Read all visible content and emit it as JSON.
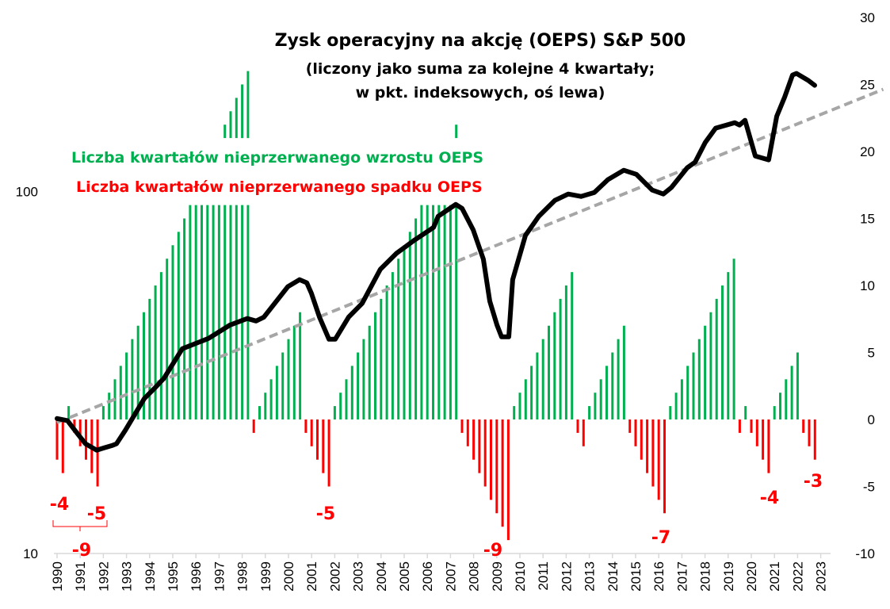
{
  "chart_data": {
    "type": "bar+line",
    "title": "Zysk operacyjny na akcję (OEPS) S&P 500",
    "subtitle_lines": [
      "(liczony jako suma za kolejne 4 kwartały;",
      "w pkt. indeksowych, oś lewa)"
    ],
    "legend": [
      {
        "text": "Liczba kwartałów nieprzerwanego wzrostu OEPS",
        "color": "#00B050"
      },
      {
        "text": "Liczba kwartałów nieprzerwanego spadku OEPS",
        "color": "#FF0000"
      }
    ],
    "left_axis": {
      "scale": "log",
      "range": [
        10,
        303
      ],
      "tick_labels": [
        "10",
        "100"
      ],
      "ticks": [
        10,
        100
      ]
    },
    "right_axis": {
      "scale": "linear",
      "range": [
        -10,
        30
      ],
      "ticks": [
        -10,
        -5,
        0,
        5,
        10,
        15,
        20,
        25,
        30
      ],
      "tick_labels": [
        "-10",
        "-5",
        "0",
        "5",
        "10",
        "15",
        "20",
        "25",
        "30"
      ]
    },
    "right_axis_break": {
      "clip_at": 16,
      "resume_from": 21
    },
    "x_range": [
      1990,
      2025.75
    ],
    "x_tick_labels": [
      "1990",
      "1991",
      "1992",
      "1993",
      "1994",
      "1995",
      "1996",
      "1997",
      "1998",
      "1999",
      "2000",
      "2001",
      "2002",
      "2003",
      "2004",
      "2005",
      "2006",
      "2007",
      "2008",
      "2009",
      "2010",
      "2011",
      "2012",
      "2013",
      "2014",
      "2015",
      "2016",
      "2017",
      "2018",
      "2019",
      "2020",
      "2021",
      "2022",
      "2023"
    ],
    "bars_start": "1990Q1",
    "bar_values": [
      -3,
      -4,
      1,
      -1,
      -2,
      -3,
      -4,
      -5,
      1,
      2,
      3,
      4,
      5,
      6,
      7,
      8,
      9,
      10,
      11,
      12,
      13,
      14,
      15,
      16,
      17,
      18,
      19,
      20,
      21,
      22,
      23,
      24,
      25,
      26,
      -1,
      1,
      2,
      3,
      4,
      5,
      6,
      7,
      8,
      -1,
      -2,
      -3,
      -4,
      -5,
      1,
      2,
      3,
      4,
      5,
      6,
      7,
      8,
      9,
      10,
      11,
      12,
      13,
      14,
      15,
      16,
      17,
      18,
      19,
      20,
      21,
      22,
      -1,
      -2,
      -3,
      -4,
      -5,
      -6,
      -7,
      -8,
      -9,
      1,
      2,
      3,
      4,
      5,
      6,
      7,
      8,
      9,
      10,
      11,
      -1,
      -2,
      1,
      2,
      3,
      4,
      5,
      6,
      7,
      -1,
      -2,
      -3,
      -4,
      -5,
      -6,
      -7,
      1,
      2,
      3,
      4,
      5,
      6,
      7,
      8,
      9,
      10,
      11,
      12,
      -1,
      1,
      -1,
      -2,
      -3,
      -4,
      1,
      2,
      3,
      4,
      5,
      -1,
      -2,
      -3
    ],
    "colors": {
      "up": "#00B050",
      "down": "#FF0000",
      "line": "#000000",
      "trend": "#A6A6A6"
    },
    "oeps_series": [
      [
        1990.0,
        23.6
      ],
      [
        1990.45,
        23.3
      ],
      [
        1990.89,
        21.4
      ],
      [
        1991.23,
        20.1
      ],
      [
        1991.71,
        19.3
      ],
      [
        1992.05,
        19.6
      ],
      [
        1992.4,
        19.9
      ],
      [
        1992.57,
        20.1
      ],
      [
        1992.95,
        21.9
      ],
      [
        1993.42,
        24.6
      ],
      [
        1993.77,
        26.8
      ],
      [
        1994.21,
        28.6
      ],
      [
        1994.62,
        30.5
      ],
      [
        1995.41,
        36.8
      ],
      [
        1996.54,
        39.3
      ],
      [
        1997.47,
        42.8
      ],
      [
        1998.22,
        44.6
      ],
      [
        1998.6,
        43.9
      ],
      [
        1998.94,
        45.0
      ],
      [
        1999.97,
        54.6
      ],
      [
        2000.48,
        57.1
      ],
      [
        2000.79,
        56.0
      ],
      [
        2000.99,
        52.4
      ],
      [
        2001.34,
        45.0
      ],
      [
        2001.75,
        39.1
      ],
      [
        2002.02,
        39.1
      ],
      [
        2002.6,
        45.0
      ],
      [
        2003.18,
        49.1
      ],
      [
        2003.97,
        61.0
      ],
      [
        2004.66,
        67.5
      ],
      [
        2005.45,
        73.5
      ],
      [
        2006.27,
        79.7
      ],
      [
        2006.47,
        85.5
      ],
      [
        2007.23,
        92.2
      ],
      [
        2007.5,
        89.9
      ],
      [
        2007.98,
        78.5
      ],
      [
        2008.42,
        65.1
      ],
      [
        2008.7,
        49.8
      ],
      [
        2009.01,
        42.8
      ],
      [
        2009.21,
        39.7
      ],
      [
        2009.52,
        39.7
      ],
      [
        2009.69,
        57.1
      ],
      [
        2010.24,
        75.7
      ],
      [
        2010.82,
        85.5
      ],
      [
        2011.51,
        94.6
      ],
      [
        2012.09,
        98.5
      ],
      [
        2012.64,
        97.0
      ],
      [
        2013.22,
        99.5
      ],
      [
        2013.8,
        107.9
      ],
      [
        2014.49,
        114.6
      ],
      [
        2015.03,
        111.7
      ],
      [
        2015.72,
        101.0
      ],
      [
        2016.2,
        98.5
      ],
      [
        2016.54,
        102.6
      ],
      [
        2017.23,
        116.4
      ],
      [
        2017.57,
        120.6
      ],
      [
        2018.01,
        136.8
      ],
      [
        2018.46,
        149.8
      ],
      [
        2019.28,
        155.1
      ],
      [
        2019.49,
        152.8
      ],
      [
        2019.73,
        157.5
      ],
      [
        2020.17,
        125.5
      ],
      [
        2020.75,
        122.4
      ],
      [
        2021.1,
        161.6
      ],
      [
        2021.44,
        182.4
      ],
      [
        2021.78,
        210.1
      ],
      [
        2021.95,
        212.2
      ],
      [
        2022.47,
        202.8
      ],
      [
        2022.74,
        196.7
      ]
    ],
    "trend": [
      [
        1990.0,
        23.0
      ],
      [
        2025.7,
        191.8
      ]
    ],
    "annotations": [
      {
        "text": "-4"
      },
      {
        "text": "-5"
      },
      {
        "text": "-9"
      },
      {
        "text": "-5"
      },
      {
        "text": "-9"
      },
      {
        "text": "-7"
      },
      {
        "text": "-4"
      },
      {
        "text": "-3"
      }
    ]
  }
}
